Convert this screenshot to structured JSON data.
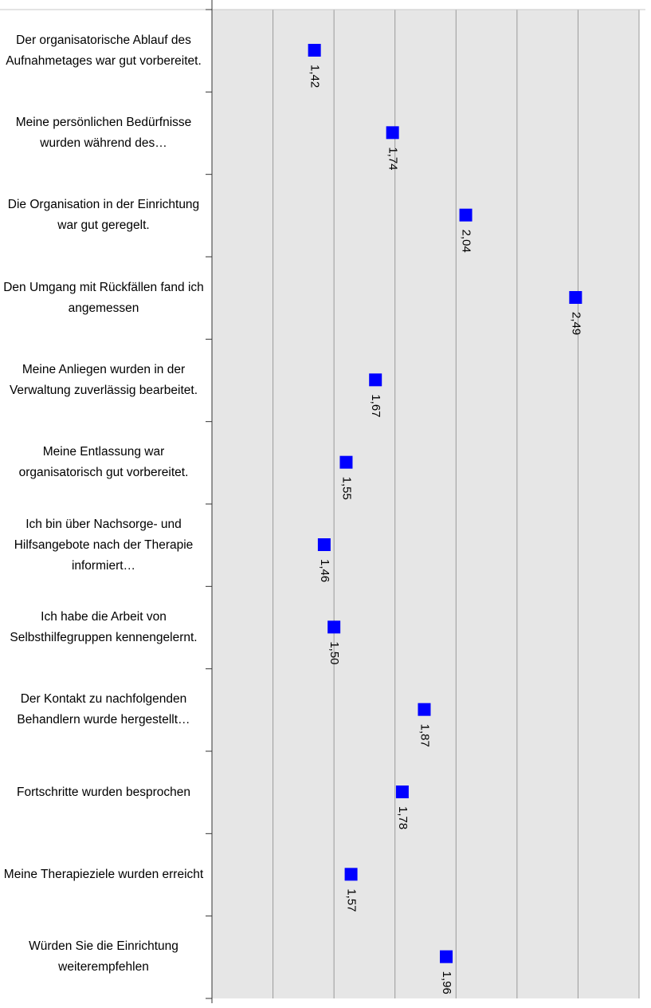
{
  "chart_data": {
    "type": "dot",
    "orientation": "horizontal",
    "categories": [
      "Der organisatorische Ablauf des Aufnahmetages war gut vorbereitet.",
      "Meine persönlichen Bedürfnisse wurden während des…",
      "Die Organisation in der Einrichtung war gut geregelt.",
      "Den Umgang mit Rückfällen fand ich angemessen",
      "Meine Anliegen wurden in der Verwaltung zuverlässig bearbeitet.",
      "Meine Entlassung war organisatorisch gut vorbereitet.",
      "Ich bin über Nachsorge- und Hilfsangebote nach der Therapie informiert…",
      "Ich habe die Arbeit von Selbsthilfegruppen kennengelernt.",
      "Der Kontakt zu nachfolgenden Behandlern wurde hergestellt…",
      "Fortschritte wurden besprochen",
      "Meine Therapieziele wurden erreicht",
      "Würden Sie die Einrichtung weiterempfehlen"
    ],
    "values": [
      1.42,
      1.74,
      2.04,
      2.49,
      1.67,
      1.55,
      1.46,
      1.5,
      1.87,
      1.78,
      1.57,
      1.96
    ],
    "value_labels": [
      "1,42",
      "1,74",
      "2,04",
      "2,49",
      "1,67",
      "1,55",
      "1,46",
      "1,50",
      "1,87",
      "1,78",
      "1,57",
      "1,96"
    ],
    "color": "#0000ff",
    "xlim": [
      1,
      2.75
    ],
    "xticks": [
      1,
      1.25,
      1.5,
      1.75,
      2,
      2.25,
      2.5,
      2.75
    ],
    "grid": true
  }
}
